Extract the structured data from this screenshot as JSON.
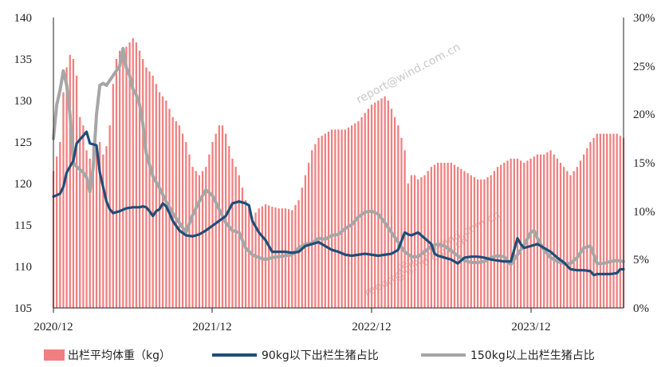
{
  "chart_data": {
    "type": "bar+line",
    "x_tick_labels": [
      "2020/12",
      "2021/12",
      "2022/12",
      "2023/12"
    ],
    "ylim_left": [
      105,
      140
    ],
    "yticks_left": [
      "140",
      "135",
      "130",
      "125",
      "120",
      "115",
      "110",
      "105"
    ],
    "ylim_right": [
      0,
      30
    ],
    "yticks_right": [
      "30%",
      "25%",
      "20%",
      "15%",
      "10%",
      "5%",
      "0%"
    ],
    "week_range": [
      0,
      172
    ],
    "bars": {
      "name": "出栏平均体重（kg）",
      "color": "#f08080",
      "anchors": [
        [
          0,
          121.5
        ],
        [
          2,
          125
        ],
        [
          3,
          131
        ],
        [
          4,
          134
        ],
        [
          5,
          135.5
        ],
        [
          6,
          135
        ],
        [
          7,
          133
        ],
        [
          8,
          128
        ],
        [
          9,
          127
        ],
        [
          10,
          124
        ],
        [
          11,
          123
        ],
        [
          12,
          124.5
        ],
        [
          13,
          124
        ],
        [
          14,
          125
        ],
        [
          15,
          123.5
        ],
        [
          16,
          124.5
        ],
        [
          17,
          127
        ],
        [
          18,
          132
        ],
        [
          19,
          135
        ],
        [
          20,
          136
        ],
        [
          22,
          136.5
        ],
        [
          24,
          137.5
        ],
        [
          25,
          137
        ],
        [
          26,
          136
        ],
        [
          28,
          134
        ],
        [
          30,
          133
        ],
        [
          32,
          131
        ],
        [
          34,
          130
        ],
        [
          36,
          128
        ],
        [
          38,
          127
        ],
        [
          40,
          125
        ],
        [
          42,
          122
        ],
        [
          44,
          121
        ],
        [
          46,
          122
        ],
        [
          48,
          125
        ],
        [
          50,
          127
        ],
        [
          51,
          127
        ],
        [
          52,
          126
        ],
        [
          54,
          123
        ],
        [
          56,
          121
        ],
        [
          58,
          118
        ],
        [
          60,
          116
        ],
        [
          62,
          117
        ],
        [
          64,
          117.5
        ],
        [
          66,
          117.2
        ],
        [
          68,
          117
        ],
        [
          70,
          117
        ],
        [
          72,
          116.8
        ],
        [
          74,
          118
        ],
        [
          76,
          121
        ],
        [
          78,
          124
        ],
        [
          80,
          125.5
        ],
        [
          82,
          126
        ],
        [
          84,
          126.5
        ],
        [
          86,
          126.5
        ],
        [
          88,
          126.5
        ],
        [
          90,
          127
        ],
        [
          92,
          127.5
        ],
        [
          94,
          128.5
        ],
        [
          96,
          129.5
        ],
        [
          98,
          130
        ],
        [
          100,
          130.5
        ],
        [
          101,
          130
        ],
        [
          102,
          129
        ],
        [
          104,
          127
        ],
        [
          106,
          124
        ],
        [
          107,
          120
        ],
        [
          108,
          121
        ],
        [
          109,
          121
        ],
        [
          110,
          120.5
        ],
        [
          112,
          121
        ],
        [
          114,
          122
        ],
        [
          116,
          122.5
        ],
        [
          118,
          122.5
        ],
        [
          120,
          122.5
        ],
        [
          122,
          122
        ],
        [
          124,
          121.5
        ],
        [
          126,
          121
        ],
        [
          128,
          120.5
        ],
        [
          130,
          120.5
        ],
        [
          132,
          121
        ],
        [
          134,
          122
        ],
        [
          136,
          122.5
        ],
        [
          138,
          123
        ],
        [
          140,
          123
        ],
        [
          142,
          122.5
        ],
        [
          144,
          123
        ],
        [
          146,
          123.5
        ],
        [
          148,
          123.5
        ],
        [
          150,
          124
        ],
        [
          152,
          123
        ],
        [
          154,
          122
        ],
        [
          156,
          121
        ],
        [
          158,
          122
        ],
        [
          160,
          123.5
        ],
        [
          162,
          125
        ],
        [
          164,
          126
        ],
        [
          166,
          126
        ],
        [
          168,
          126
        ],
        [
          170,
          126
        ],
        [
          172,
          125.5
        ]
      ]
    },
    "series": [
      {
        "name": "90kg以下出栏生猪占比",
        "color": "#1f4e79",
        "axis": "right",
        "points": [
          [
            0,
            11.5
          ],
          [
            2,
            11.8
          ],
          [
            3,
            12.5
          ],
          [
            4,
            14.0
          ],
          [
            6,
            15.2
          ],
          [
            7,
            17.0
          ],
          [
            9,
            17.8
          ],
          [
            10,
            18.2
          ],
          [
            11,
            17.0
          ],
          [
            13,
            16.8
          ],
          [
            14,
            14.0
          ],
          [
            15,
            12.5
          ],
          [
            16,
            11.0
          ],
          [
            17,
            10.2
          ],
          [
            18,
            9.8
          ],
          [
            20,
            10.0
          ],
          [
            22,
            10.3
          ],
          [
            24,
            10.4
          ],
          [
            26,
            10.4
          ],
          [
            27,
            10.5
          ],
          [
            28,
            10.4
          ],
          [
            29,
            10.0
          ],
          [
            30,
            9.5
          ],
          [
            31,
            10.0
          ],
          [
            32,
            10.2
          ],
          [
            33,
            10.8
          ],
          [
            34,
            10.5
          ],
          [
            35,
            9.8
          ],
          [
            36,
            9.0
          ],
          [
            38,
            8.0
          ],
          [
            40,
            7.5
          ],
          [
            42,
            7.4
          ],
          [
            44,
            7.6
          ],
          [
            46,
            8.0
          ],
          [
            48,
            8.5
          ],
          [
            50,
            9.0
          ],
          [
            52,
            9.5
          ],
          [
            54,
            10.8
          ],
          [
            56,
            11.0
          ],
          [
            58,
            10.8
          ],
          [
            59,
            10.6
          ],
          [
            60,
            9.0
          ],
          [
            62,
            7.8
          ],
          [
            64,
            7.0
          ],
          [
            66,
            5.8
          ],
          [
            68,
            5.8
          ],
          [
            70,
            5.8
          ],
          [
            72,
            5.7
          ],
          [
            74,
            5.8
          ],
          [
            76,
            6.4
          ],
          [
            78,
            6.6
          ],
          [
            80,
            6.8
          ],
          [
            82,
            6.4
          ],
          [
            84,
            6.0
          ],
          [
            86,
            5.8
          ],
          [
            88,
            5.5
          ],
          [
            90,
            5.4
          ],
          [
            92,
            5.5
          ],
          [
            94,
            5.6
          ],
          [
            96,
            5.5
          ],
          [
            98,
            5.4
          ],
          [
            100,
            5.5
          ],
          [
            102,
            5.6
          ],
          [
            104,
            6.0
          ],
          [
            106,
            7.8
          ],
          [
            107,
            7.6
          ],
          [
            108,
            7.5
          ],
          [
            110,
            7.8
          ],
          [
            112,
            7.2
          ],
          [
            114,
            6.6
          ],
          [
            115,
            5.6
          ],
          [
            116,
            5.4
          ],
          [
            118,
            5.2
          ],
          [
            120,
            5.0
          ],
          [
            122,
            4.6
          ],
          [
            124,
            5.2
          ],
          [
            126,
            5.3
          ],
          [
            128,
            5.3
          ],
          [
            130,
            5.2
          ],
          [
            132,
            5.0
          ],
          [
            134,
            4.9
          ],
          [
            136,
            4.8
          ],
          [
            138,
            4.8
          ],
          [
            140,
            7.2
          ],
          [
            141,
            6.6
          ],
          [
            142,
            6.2
          ],
          [
            144,
            6.4
          ],
          [
            146,
            6.6
          ],
          [
            148,
            6.2
          ],
          [
            150,
            5.8
          ],
          [
            152,
            5.2
          ],
          [
            154,
            4.7
          ],
          [
            156,
            4.0
          ],
          [
            158,
            3.9
          ],
          [
            160,
            3.9
          ],
          [
            162,
            3.8
          ],
          [
            163,
            3.4
          ],
          [
            164,
            3.5
          ],
          [
            166,
            3.5
          ],
          [
            168,
            3.5
          ],
          [
            170,
            3.6
          ],
          [
            171,
            4.0
          ],
          [
            172,
            4.0
          ]
        ]
      },
      {
        "name": "150kg以上出栏生猪占比",
        "color": "#a6a6a6",
        "axis": "right",
        "points": [
          [
            0,
            17.5
          ],
          [
            1,
            21.0
          ],
          [
            2,
            22.5
          ],
          [
            3,
            24.5
          ],
          [
            4,
            23.0
          ],
          [
            5,
            20.0
          ],
          [
            6,
            15.0
          ],
          [
            7,
            14.6
          ],
          [
            8,
            14.3
          ],
          [
            9,
            14.0
          ],
          [
            10,
            13.5
          ],
          [
            11,
            12.0
          ],
          [
            12,
            14.5
          ],
          [
            13,
            20.0
          ],
          [
            14,
            23.0
          ],
          [
            15,
            23.2
          ],
          [
            16,
            23.0
          ],
          [
            18,
            24.0
          ],
          [
            20,
            25.0
          ],
          [
            21,
            26.8
          ],
          [
            22,
            24.8
          ],
          [
            23,
            24.0
          ],
          [
            24,
            22.6
          ],
          [
            25,
            22.0
          ],
          [
            26,
            21.0
          ],
          [
            27,
            19.0
          ],
          [
            28,
            16.0
          ],
          [
            30,
            13.6
          ],
          [
            32,
            12.4
          ],
          [
            34,
            11.0
          ],
          [
            36,
            9.8
          ],
          [
            38,
            8.8
          ],
          [
            40,
            7.8
          ],
          [
            42,
            9.6
          ],
          [
            44,
            11.0
          ],
          [
            46,
            12.2
          ],
          [
            48,
            11.6
          ],
          [
            50,
            10.2
          ],
          [
            52,
            8.8
          ],
          [
            54,
            8.0
          ],
          [
            56,
            7.8
          ],
          [
            57,
            7.0
          ],
          [
            58,
            6.2
          ],
          [
            60,
            5.5
          ],
          [
            62,
            5.2
          ],
          [
            64,
            5.0
          ],
          [
            66,
            5.2
          ],
          [
            68,
            5.3
          ],
          [
            70,
            5.4
          ],
          [
            72,
            5.5
          ],
          [
            74,
            6.2
          ],
          [
            76,
            6.6
          ],
          [
            78,
            6.7
          ],
          [
            80,
            7.2
          ],
          [
            82,
            7.1
          ],
          [
            84,
            7.5
          ],
          [
            86,
            7.6
          ],
          [
            88,
            8.2
          ],
          [
            90,
            8.6
          ],
          [
            92,
            9.4
          ],
          [
            94,
            9.9
          ],
          [
            96,
            10.0
          ],
          [
            98,
            9.7
          ],
          [
            100,
            8.8
          ],
          [
            102,
            7.8
          ],
          [
            104,
            6.8
          ],
          [
            106,
            5.8
          ],
          [
            108,
            5.3
          ],
          [
            110,
            5.3
          ],
          [
            112,
            5.8
          ],
          [
            114,
            6.4
          ],
          [
            116,
            6.6
          ],
          [
            118,
            6.4
          ],
          [
            120,
            5.9
          ],
          [
            122,
            5.4
          ],
          [
            124,
            4.9
          ],
          [
            126,
            4.7
          ],
          [
            128,
            4.7
          ],
          [
            130,
            4.8
          ],
          [
            132,
            5.2
          ],
          [
            134,
            5.4
          ],
          [
            136,
            5.3
          ],
          [
            138,
            4.5
          ],
          [
            140,
            5.5
          ],
          [
            142,
            6.5
          ],
          [
            144,
            7.8
          ],
          [
            145,
            8.0
          ],
          [
            146,
            7.2
          ],
          [
            148,
            6.0
          ],
          [
            150,
            5.2
          ],
          [
            152,
            4.8
          ],
          [
            154,
            4.6
          ],
          [
            156,
            4.6
          ],
          [
            158,
            5.2
          ],
          [
            160,
            6.2
          ],
          [
            162,
            6.4
          ],
          [
            164,
            4.6
          ],
          [
            166,
            4.6
          ],
          [
            168,
            4.8
          ],
          [
            170,
            4.9
          ],
          [
            172,
            4.8
          ]
        ]
      }
    ],
    "watermarks": [
      "report@wind.com.cn",
      "report@wind.com.cn",
      "report@wind.com.cn"
    ]
  }
}
